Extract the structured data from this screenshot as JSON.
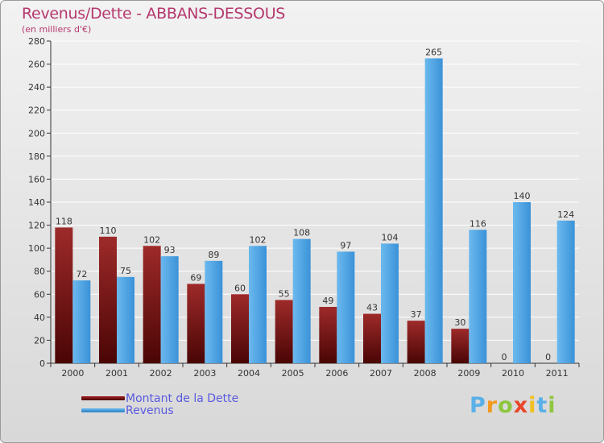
{
  "chart_data": {
    "type": "bar",
    "title": "Revenus/Dette - ABBANS-DESSOUS",
    "subtitle": "(en milliers d'€)",
    "categories": [
      "2000",
      "2001",
      "2002",
      "2003",
      "2004",
      "2005",
      "2006",
      "2007",
      "2008",
      "2009",
      "2010",
      "2011"
    ],
    "series": [
      {
        "name": "Montant de la Dette",
        "color": "#8b1a1a",
        "values": [
          118,
          110,
          102,
          69,
          60,
          55,
          49,
          43,
          37,
          30,
          0,
          0
        ]
      },
      {
        "name": "Revenus",
        "color": "#4aa3e6",
        "values": [
          72,
          75,
          93,
          89,
          102,
          108,
          97,
          104,
          265,
          116,
          140,
          124
        ]
      }
    ],
    "ylim": [
      0,
      280
    ],
    "yticks": [
      0,
      20,
      40,
      60,
      80,
      100,
      120,
      140,
      160,
      180,
      200,
      220,
      240,
      260,
      280
    ],
    "grid": true,
    "legend_position": "bottom-left"
  },
  "logo": {
    "letters": [
      "P",
      "r",
      "o",
      "x",
      "i",
      "t",
      "i"
    ],
    "colors": [
      "#5ab0e8",
      "#f29a1e",
      "#8dc63f",
      "#e8462a",
      "#f2c01e",
      "#5ab0e8",
      "#8dc63f"
    ]
  }
}
